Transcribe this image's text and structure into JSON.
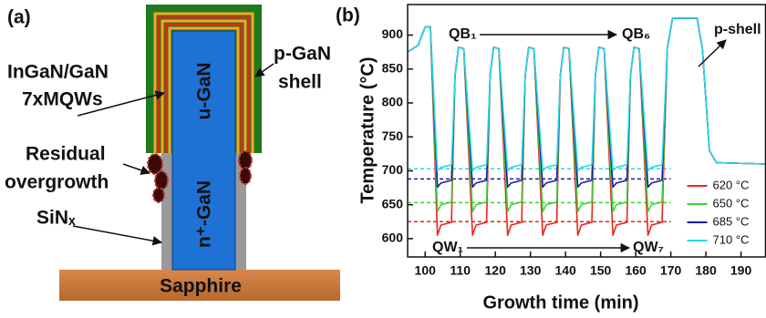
{
  "panel_a": {
    "label": "(a)",
    "texts": {
      "mqw_1": "InGaN/GaN",
      "mqw_2": "7xMQWs",
      "shell_1": "p-GaN",
      "shell_2": "shell",
      "residual_1": "Residual",
      "residual_2": "overgrowth",
      "sinx": "SiNₓ",
      "core_top": "u-GaN",
      "core_bottom": "n⁺-GaN",
      "substrate": "Sapphire"
    }
  },
  "chart_data": {
    "type": "line",
    "panel_label": "(b)",
    "xlabel": "Growth time (min)",
    "ylabel": "Temperature (°C)",
    "x": [
      95,
      98,
      100,
      101.5,
      103.5,
      104.5,
      107.5,
      108.5,
      109.5,
      111,
      113.5,
      114.5,
      117.5,
      118.5,
      119.5,
      121,
      123.5,
      124.5,
      127.5,
      128.5,
      129.5,
      131,
      133.5,
      134.5,
      137.5,
      138.5,
      139.5,
      141,
      143.5,
      144.5,
      147.5,
      148.5,
      149.5,
      151,
      153.5,
      154.5,
      157.5,
      158.5,
      159.5,
      161,
      163.5,
      164.5,
      167.5,
      169,
      170.5,
      177.5,
      179,
      181,
      183,
      197
    ],
    "series": [
      {
        "name": "620 °C",
        "color": "#e8241c",
        "values": [
          875,
          885,
          912,
          912,
          605,
          620,
          624,
          840,
          882,
          880,
          605,
          620,
          624,
          840,
          882,
          880,
          605,
          620,
          624,
          840,
          882,
          880,
          605,
          620,
          624,
          840,
          882,
          880,
          605,
          620,
          624,
          840,
          882,
          880,
          605,
          620,
          624,
          840,
          882,
          880,
          605,
          620,
          624,
          880,
          925,
          925,
          880,
          730,
          712,
          710
        ]
      },
      {
        "name": "650 °C",
        "color": "#3cd23c",
        "values": [
          875,
          885,
          912,
          912,
          640,
          650,
          654,
          840,
          882,
          880,
          640,
          650,
          654,
          840,
          882,
          880,
          640,
          650,
          654,
          840,
          882,
          880,
          640,
          650,
          654,
          840,
          882,
          880,
          640,
          650,
          654,
          840,
          882,
          880,
          640,
          650,
          654,
          840,
          882,
          880,
          640,
          650,
          654,
          880,
          925,
          925,
          880,
          730,
          712,
          710
        ]
      },
      {
        "name": "685 °C",
        "color": "#1a1aa8",
        "values": [
          875,
          885,
          912,
          912,
          676,
          682,
          686,
          840,
          882,
          880,
          676,
          682,
          686,
          840,
          882,
          880,
          676,
          682,
          686,
          840,
          882,
          880,
          676,
          682,
          686,
          840,
          882,
          880,
          676,
          682,
          686,
          840,
          882,
          880,
          676,
          682,
          686,
          840,
          882,
          880,
          676,
          682,
          686,
          880,
          925,
          925,
          880,
          730,
          712,
          710
        ]
      },
      {
        "name": "710 °C",
        "color": "#2ad8e8",
        "values": [
          875,
          885,
          912,
          912,
          700,
          705,
          709,
          840,
          882,
          880,
          700,
          705,
          709,
          840,
          882,
          880,
          700,
          705,
          709,
          840,
          882,
          880,
          700,
          705,
          709,
          840,
          882,
          880,
          700,
          705,
          709,
          840,
          882,
          880,
          700,
          705,
          709,
          840,
          882,
          880,
          700,
          705,
          709,
          880,
          925,
          925,
          880,
          730,
          712,
          710
        ]
      }
    ],
    "reference_lines": [
      {
        "value": 625,
        "color": "#e8241c",
        "x": [
          95,
          170
        ]
      },
      {
        "value": 653,
        "color": "#3cd23c",
        "x": [
          95,
          170
        ]
      },
      {
        "value": 688,
        "color": "#1a1aa8",
        "x": [
          95,
          170
        ]
      },
      {
        "value": 703,
        "color": "#2ad8e8",
        "x": [
          95,
          170
        ]
      }
    ],
    "annotations": {
      "qb_start": "QB₁",
      "qb_end": "QB₆",
      "qw_start": "QW₁",
      "qw_end": "QW₇",
      "shell": "p-shell"
    },
    "xlim": [
      95,
      197
    ],
    "ylim": [
      573,
      945
    ],
    "xticks": [
      100,
      110,
      120,
      130,
      140,
      150,
      160,
      170,
      180,
      190
    ],
    "yticks": [
      600,
      650,
      700,
      750,
      800,
      850,
      900
    ],
    "legend": "lower right"
  }
}
